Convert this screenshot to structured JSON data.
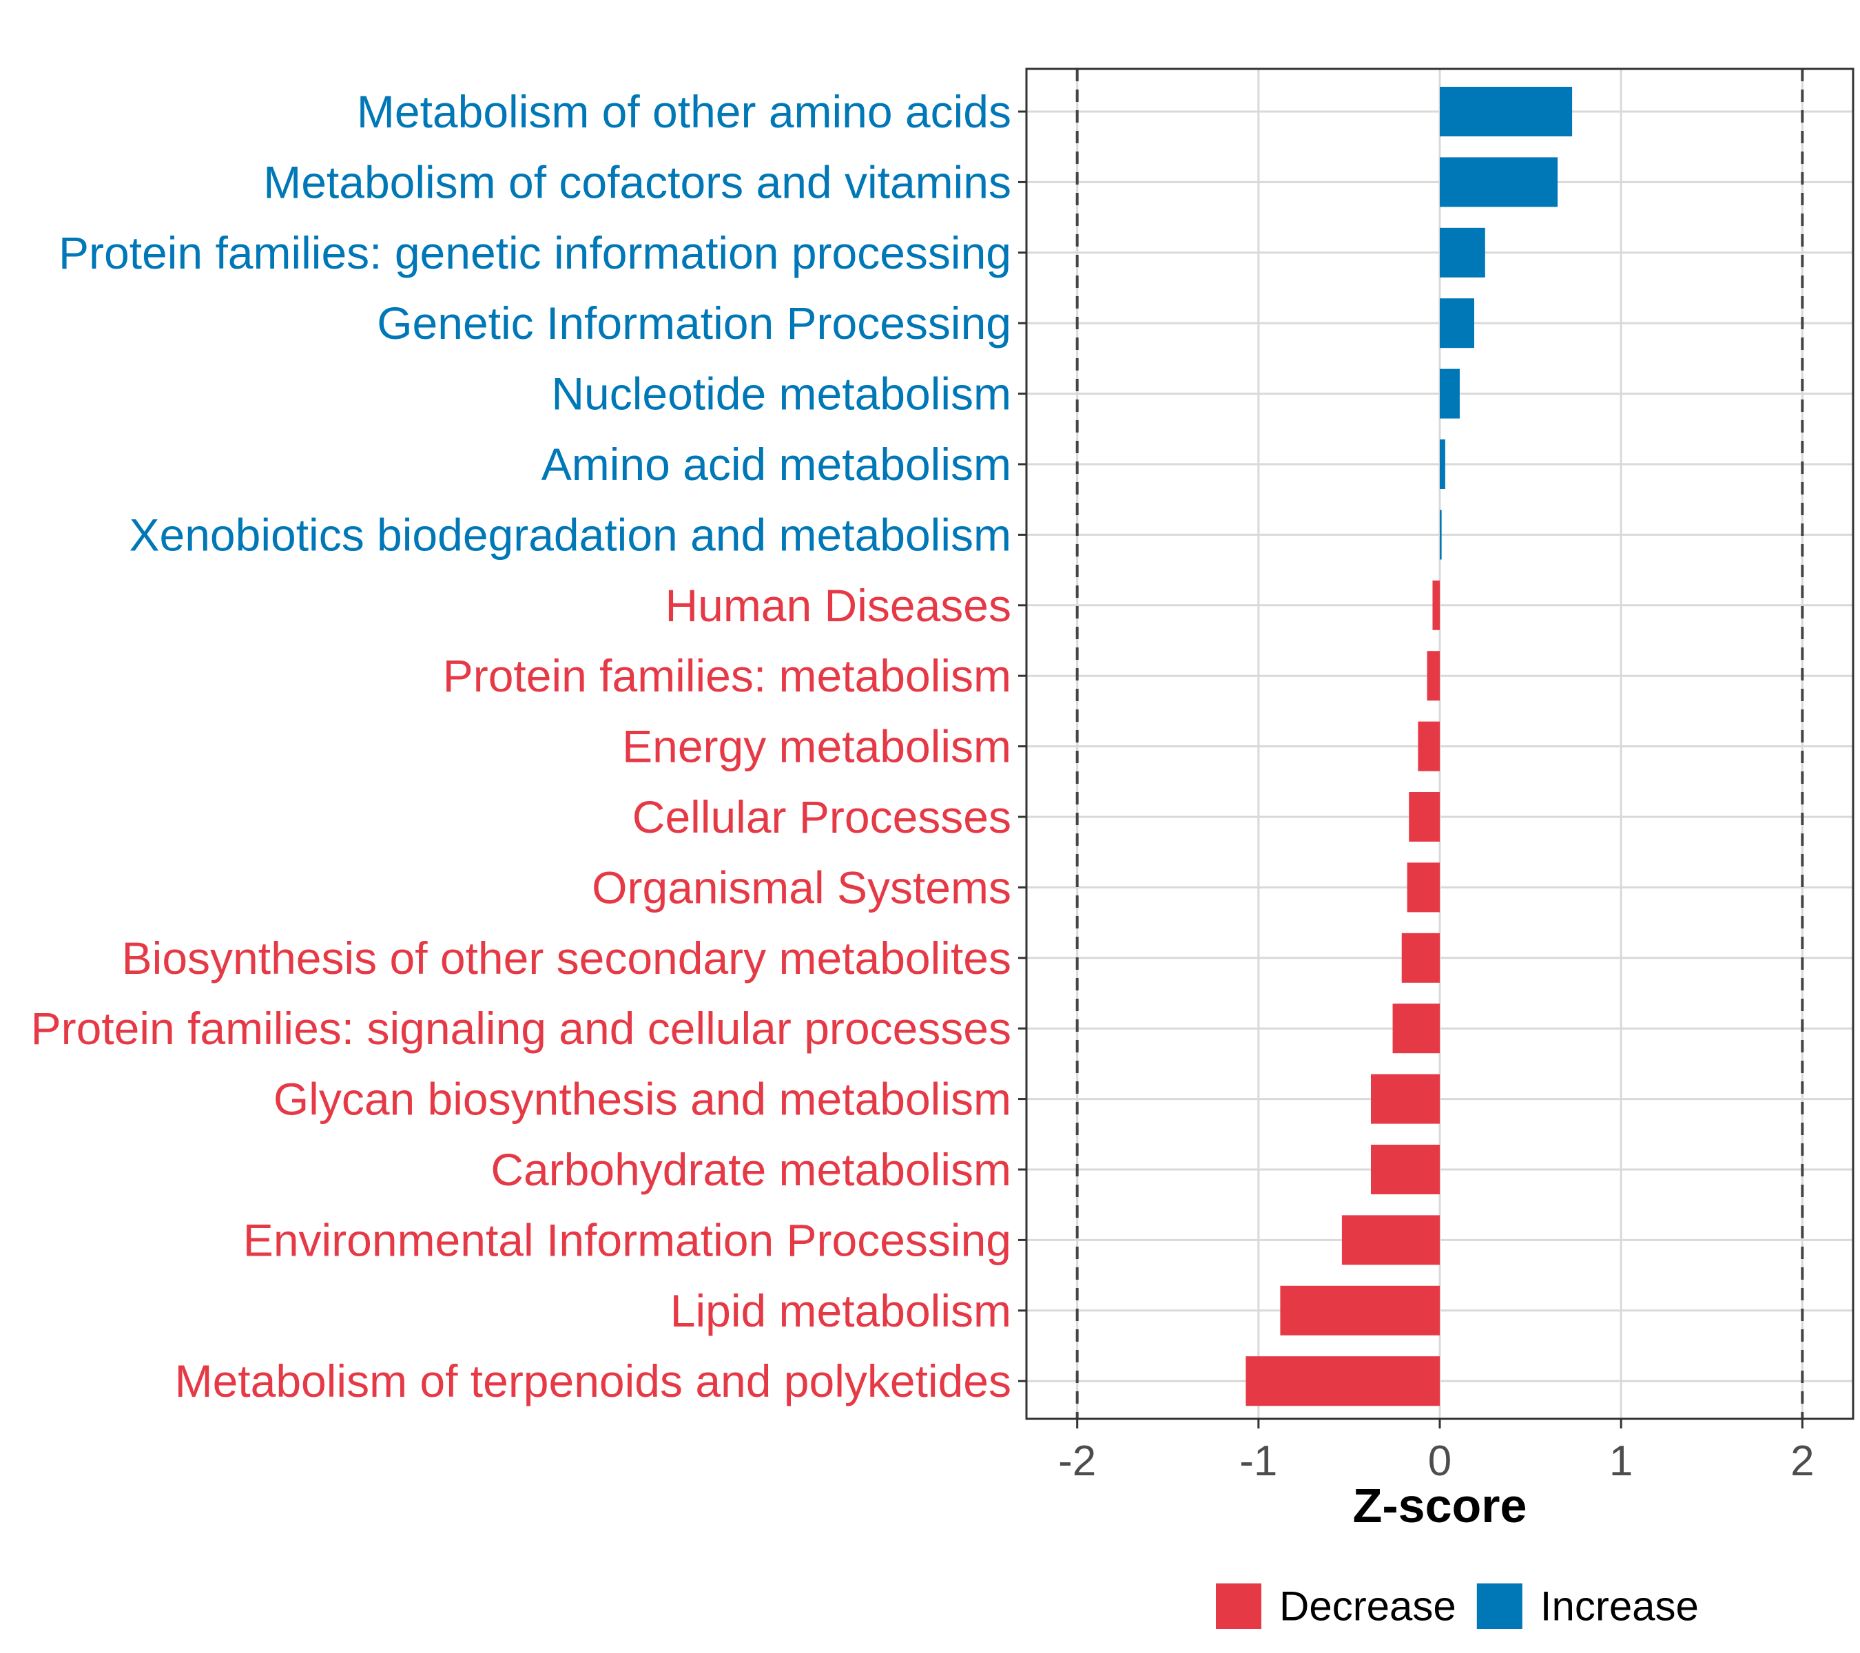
{
  "chart_data": {
    "type": "bar",
    "orientation": "horizontal",
    "title": "",
    "xlabel": "Z-score",
    "ylabel": "",
    "xlim": [
      -2.28,
      2.28
    ],
    "xticks": [
      -2,
      -1,
      0,
      1,
      2
    ],
    "threshold_lines": [
      -2,
      2
    ],
    "grid": true,
    "legend_position": "bottom",
    "colors": {
      "Decrease": "#e63946",
      "Increase": "#0077b6"
    },
    "legend": [
      {
        "name": "Decrease",
        "color": "#e63946"
      },
      {
        "name": "Increase",
        "color": "#0077b6"
      }
    ],
    "categories": [
      "Metabolism of other amino acids",
      "Metabolism of cofactors and vitamins",
      "Protein families: genetic information processing",
      "Genetic Information Processing",
      "Nucleotide metabolism",
      "Amino acid metabolism",
      "Xenobiotics biodegradation and metabolism",
      "Human Diseases",
      "Protein families: metabolism",
      "Energy metabolism",
      "Cellular Processes",
      "Organismal Systems",
      "Biosynthesis of other secondary metabolites",
      "Protein families: signaling and cellular processes",
      "Glycan biosynthesis and metabolism",
      "Carbohydrate metabolism",
      "Environmental Information Processing",
      "Lipid metabolism",
      "Metabolism of terpenoids and polyketides"
    ],
    "values": [
      0.73,
      0.65,
      0.25,
      0.19,
      0.11,
      0.03,
      0.01,
      -0.04,
      -0.07,
      -0.12,
      -0.17,
      -0.18,
      -0.21,
      -0.26,
      -0.38,
      -0.38,
      -0.54,
      -0.88,
      -1.07
    ],
    "groups": [
      "Increase",
      "Increase",
      "Increase",
      "Increase",
      "Increase",
      "Increase",
      "Increase",
      "Decrease",
      "Decrease",
      "Decrease",
      "Decrease",
      "Decrease",
      "Decrease",
      "Decrease",
      "Decrease",
      "Decrease",
      "Decrease",
      "Decrease",
      "Decrease"
    ]
  }
}
